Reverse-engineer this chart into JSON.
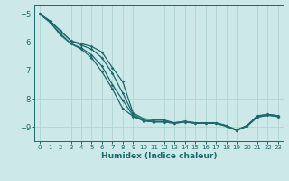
{
  "xlabel": "Humidex (Indice chaleur)",
  "xlim": [
    -0.5,
    23.5
  ],
  "ylim": [
    -9.5,
    -4.7
  ],
  "xticks": [
    0,
    1,
    2,
    3,
    4,
    5,
    6,
    7,
    8,
    9,
    10,
    11,
    12,
    13,
    14,
    15,
    16,
    17,
    18,
    19,
    20,
    21,
    22,
    23
  ],
  "yticks": [
    -9,
    -8,
    -7,
    -6,
    -5
  ],
  "background_color": "#cce8e8",
  "grid_color": "#aacfcf",
  "line_color": "#1a6b6b",
  "lines": [
    [
      -5.0,
      -5.25,
      -5.6,
      -5.95,
      -6.05,
      -6.15,
      -6.35,
      -6.9,
      -7.4,
      -8.5,
      -8.7,
      -8.75,
      -8.75,
      -8.85,
      -8.8,
      -8.85,
      -8.85,
      -8.85,
      -8.95,
      -9.1,
      -8.95,
      -8.6,
      -8.55,
      -8.6
    ],
    [
      -5.0,
      -5.25,
      -5.6,
      -5.95,
      -6.1,
      -6.25,
      -6.55,
      -7.1,
      -7.8,
      -8.55,
      -8.75,
      -8.8,
      -8.8,
      -8.85,
      -8.8,
      -8.85,
      -8.85,
      -8.85,
      -8.95,
      -9.1,
      -8.95,
      -8.62,
      -8.55,
      -8.6
    ],
    [
      -5.0,
      -5.3,
      -5.7,
      -6.05,
      -6.2,
      -6.45,
      -6.85,
      -7.5,
      -8.05,
      -8.6,
      -8.78,
      -8.82,
      -8.82,
      -8.87,
      -8.82,
      -8.87,
      -8.87,
      -8.87,
      -8.97,
      -9.12,
      -8.97,
      -8.65,
      -8.58,
      -8.63
    ],
    [
      -5.0,
      -5.3,
      -5.75,
      -6.05,
      -6.25,
      -6.55,
      -7.05,
      -7.65,
      -8.35,
      -8.62,
      -8.78,
      -8.82,
      -8.82,
      -8.87,
      -8.82,
      -8.87,
      -8.87,
      -8.87,
      -8.97,
      -9.12,
      -8.97,
      -8.65,
      -8.58,
      -8.63
    ]
  ]
}
